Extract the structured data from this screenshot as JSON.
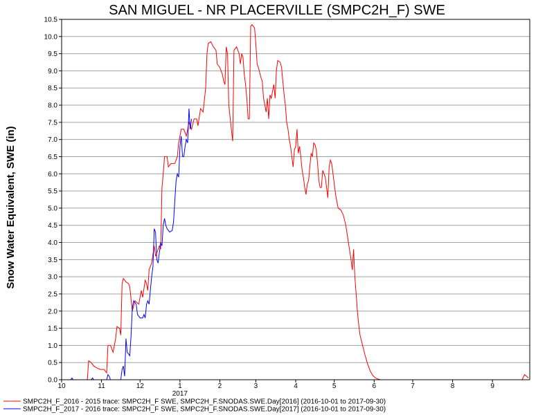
{
  "chart_data": {
    "type": "line",
    "title": "SAN MIGUEL - NR PLACERVILLE (SMPC2H_F) SWE",
    "ylabel": "Snow Water Equivalent, SWE (in)",
    "xlabel": "",
    "ylim": [
      0,
      10.5
    ],
    "yticks": [
      0.0,
      0.5,
      1.0,
      1.5,
      2.0,
      2.5,
      3.0,
      3.5,
      4.0,
      4.5,
      5.0,
      5.5,
      6.0,
      6.5,
      7.0,
      7.5,
      8.0,
      8.5,
      9.0,
      9.5,
      10.0,
      10.5
    ],
    "ytick_labels": [
      "0.0",
      "0.5",
      "1.0",
      "1.5",
      "2.0",
      "2.5",
      "3.0",
      "3.5",
      "4.0",
      "4.5",
      "5.0",
      "5.5",
      "6.0",
      "6.5",
      "7.0",
      "7.5",
      "8.0",
      "8.5",
      "9.0",
      "9.5",
      "10.0",
      "10.5"
    ],
    "xlim": [
      0,
      364
    ],
    "xticks": [
      0,
      31,
      61,
      92,
      123,
      151,
      182,
      212,
      243,
      273,
      304,
      335
    ],
    "xtick_labels": [
      "10",
      "11",
      "12",
      "1",
      "2",
      "3",
      "4",
      "5",
      "6",
      "7",
      "8",
      "9"
    ],
    "year_label": "2017",
    "grid": true,
    "legend": "bottom",
    "series": [
      {
        "name": "SMPC2H_F_2016 - 2015 trace: SMPC2H_F SWE, SMPC2H_F.SNODAS.SWE.Day[2016] (2016-10-01 to 2017-09-30)",
        "color": "#ff0000",
        "points": [
          [
            0,
            0
          ],
          [
            20,
            0
          ],
          [
            21,
            0.55
          ],
          [
            23,
            0.5
          ],
          [
            25,
            0.4
          ],
          [
            27,
            0.35
          ],
          [
            30,
            0.3
          ],
          [
            33,
            0.3
          ],
          [
            35,
            0.2
          ],
          [
            36,
            1.0
          ],
          [
            38,
            1.0
          ],
          [
            40,
            0.8
          ],
          [
            42,
            1.2
          ],
          [
            43,
            1.55
          ],
          [
            45,
            1.5
          ],
          [
            46,
            1.3
          ],
          [
            47,
            2.8
          ],
          [
            48,
            2.95
          ],
          [
            50,
            2.85
          ],
          [
            52,
            2.8
          ],
          [
            53,
            2.7
          ],
          [
            55,
            2.0
          ],
          [
            57,
            2.3
          ],
          [
            60,
            2.2
          ],
          [
            62,
            2.6
          ],
          [
            63,
            2.4
          ],
          [
            65,
            2.9
          ],
          [
            66,
            2.8
          ],
          [
            67,
            2.6
          ],
          [
            68,
            3.2
          ],
          [
            70,
            3.4
          ],
          [
            72,
            3.9
          ],
          [
            73,
            3.6
          ],
          [
            75,
            3.8
          ],
          [
            76,
            3.9
          ],
          [
            77,
            3.8
          ],
          [
            78,
            5.6
          ],
          [
            79,
            6.0
          ],
          [
            80,
            6.5
          ],
          [
            82,
            6.5
          ],
          [
            83,
            6.2
          ],
          [
            85,
            6.3
          ],
          [
            88,
            6.3
          ],
          [
            90,
            6.5
          ],
          [
            91,
            6.9
          ],
          [
            93,
            7.3
          ],
          [
            95,
            7.3
          ],
          [
            97,
            7.1
          ],
          [
            98,
            7.3
          ],
          [
            99,
            7.5
          ],
          [
            101,
            7.3
          ],
          [
            103,
            7.6
          ],
          [
            105,
            7.6
          ],
          [
            106,
            7.4
          ],
          [
            108,
            7.9
          ],
          [
            110,
            7.8
          ],
          [
            112,
            8.5
          ],
          [
            113,
            9.5
          ],
          [
            114,
            9.8
          ],
          [
            116,
            9.85
          ],
          [
            118,
            9.7
          ],
          [
            120,
            9.6
          ],
          [
            121,
            9.2
          ],
          [
            123,
            9.1
          ],
          [
            125,
            8.9
          ],
          [
            126,
            8.7
          ],
          [
            127,
            8.6
          ],
          [
            128,
            9.7
          ],
          [
            129,
            9.5
          ],
          [
            130,
            8.0
          ],
          [
            132,
            7.3
          ],
          [
            133,
            6.95
          ],
          [
            134,
            9.6
          ],
          [
            136,
            9.7
          ],
          [
            138,
            9.5
          ],
          [
            139,
            9.2
          ],
          [
            140,
            9.5
          ],
          [
            141,
            9.4
          ],
          [
            142,
            8.9
          ],
          [
            143,
            8.6
          ],
          [
            144,
            8.2
          ],
          [
            145,
            7.6
          ],
          [
            146,
            7.6
          ],
          [
            147,
            10.3
          ],
          [
            148,
            10.35
          ],
          [
            150,
            10.25
          ],
          [
            151,
            9.8
          ],
          [
            152,
            9.2
          ],
          [
            153,
            9.1
          ],
          [
            155,
            8.8
          ],
          [
            156,
            8.7
          ],
          [
            157,
            8.2
          ],
          [
            159,
            7.8
          ],
          [
            160,
            8.2
          ],
          [
            161,
            7.6
          ],
          [
            162,
            8.3
          ],
          [
            163,
            8.2
          ],
          [
            165,
            8.6
          ],
          [
            166,
            8.2
          ],
          [
            167,
            9.0
          ],
          [
            168,
            9.3
          ],
          [
            170,
            9.25
          ],
          [
            171,
            9.1
          ],
          [
            172,
            8.7
          ],
          [
            173,
            8.3
          ],
          [
            174,
            8.0
          ],
          [
            175,
            7.5
          ],
          [
            176,
            7.3
          ],
          [
            177,
            7.0
          ],
          [
            178,
            6.8
          ],
          [
            179,
            6.5
          ],
          [
            180,
            6.2
          ],
          [
            181,
            6.7
          ],
          [
            182,
            6.8
          ],
          [
            183,
            7.3
          ],
          [
            184,
            6.6
          ],
          [
            185,
            6.8
          ],
          [
            186,
            6.5
          ],
          [
            187,
            6.1
          ],
          [
            188,
            5.9
          ],
          [
            189,
            5.6
          ],
          [
            190,
            5.4
          ],
          [
            191,
            5.7
          ],
          [
            192,
            5.8
          ],
          [
            193,
            6.2
          ],
          [
            194,
            6.6
          ],
          [
            195,
            6.5
          ],
          [
            196,
            6.9
          ],
          [
            197,
            6.85
          ],
          [
            198,
            6.7
          ],
          [
            199,
            6.3
          ],
          [
            200,
            5.8
          ],
          [
            201,
            5.6
          ],
          [
            202,
            5.6
          ],
          [
            203,
            6.1
          ],
          [
            204,
            6.0
          ],
          [
            205,
            5.9
          ],
          [
            206,
            5.6
          ],
          [
            207,
            5.3
          ],
          [
            208,
            6.2
          ],
          [
            209,
            6.4
          ],
          [
            210,
            6.3
          ],
          [
            211,
            6.0
          ],
          [
            212,
            5.7
          ],
          [
            213,
            5.4
          ],
          [
            214,
            5.2
          ],
          [
            215,
            5.0
          ],
          [
            217,
            4.95
          ],
          [
            219,
            4.8
          ],
          [
            221,
            4.5
          ],
          [
            223,
            4.0
          ],
          [
            225,
            3.5
          ],
          [
            226,
            3.2
          ],
          [
            227,
            3.8
          ],
          [
            228,
            3.0
          ],
          [
            229,
            2.5
          ],
          [
            230,
            2.0
          ],
          [
            231,
            1.6
          ],
          [
            232,
            1.3
          ],
          [
            234,
            1.0
          ],
          [
            236,
            0.7
          ],
          [
            238,
            0.45
          ],
          [
            240,
            0.25
          ],
          [
            242,
            0.12
          ],
          [
            244,
            0.05
          ],
          [
            246,
            0.02
          ],
          [
            248,
            0
          ],
          [
            340,
            0
          ],
          [
            358,
            0
          ],
          [
            360,
            0.15
          ],
          [
            363,
            0.05
          ]
        ]
      },
      {
        "name": "SMPC2H_F_2017 - 2016 trace: SMPC2H_F SWE, SMPC2H_F.SNODAS.SWE.Day[2017] (2016-10-01 to 2017-09-30)",
        "color": "#0000ff",
        "points": [
          [
            0,
            0
          ],
          [
            7,
            0
          ],
          [
            8,
            0.05
          ],
          [
            9,
            0
          ],
          [
            23,
            0
          ],
          [
            24,
            0.05
          ],
          [
            25,
            0
          ],
          [
            35,
            0
          ],
          [
            36,
            0.15
          ],
          [
            37,
            0.1
          ],
          [
            38,
            0
          ],
          [
            46,
            0
          ],
          [
            47,
            0.3
          ],
          [
            48,
            0.4
          ],
          [
            49,
            0.1
          ],
          [
            50,
            1.2
          ],
          [
            51,
            0.8
          ],
          [
            53,
            0.7
          ],
          [
            54,
            1.3
          ],
          [
            55,
            2.1
          ],
          [
            56,
            2.3
          ],
          [
            58,
            2.2
          ],
          [
            59,
            1.9
          ],
          [
            61,
            1.8
          ],
          [
            63,
            1.8
          ],
          [
            64,
            1.9
          ],
          [
            65,
            1.8
          ],
          [
            66,
            2.2
          ],
          [
            67,
            2.3
          ],
          [
            68,
            2.2
          ],
          [
            69,
            2.6
          ],
          [
            70,
            3.0
          ],
          [
            71,
            3.3
          ],
          [
            72,
            4.4
          ],
          [
            73,
            4.3
          ],
          [
            74,
            3.5
          ],
          [
            75,
            3.4
          ],
          [
            76,
            3.7
          ],
          [
            77,
            4.0
          ],
          [
            78,
            3.9
          ],
          [
            79,
            4.5
          ],
          [
            80,
            4.7
          ],
          [
            81,
            4.5
          ],
          [
            82,
            4.4
          ],
          [
            84,
            4.3
          ],
          [
            86,
            4.35
          ],
          [
            87,
            4.6
          ],
          [
            88,
            5.2
          ],
          [
            89,
            5.8
          ],
          [
            90,
            6.0
          ],
          [
            91,
            5.9
          ],
          [
            92,
            6.8
          ],
          [
            93,
            7.1
          ],
          [
            94,
            6.5
          ],
          [
            95,
            6.5
          ],
          [
            96,
            6.8
          ],
          [
            97,
            7.0
          ],
          [
            98,
            6.9
          ],
          [
            99,
            7.9
          ],
          [
            100,
            7.3
          ],
          [
            101,
            7.6
          ]
        ]
      }
    ]
  }
}
